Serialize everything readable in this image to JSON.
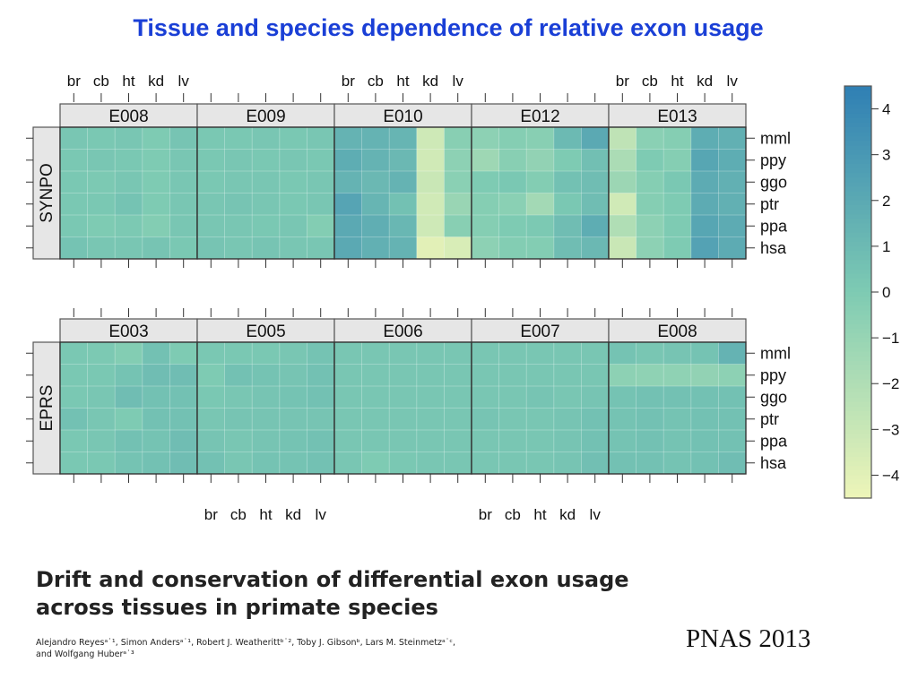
{
  "slide": {
    "title": "Tissue and species dependence of relative exon usage"
  },
  "paper": {
    "title_lines": [
      "Drift and conservation of differential exon usage",
      "across tissues in primate species"
    ],
    "authors_line1": "Alejandro Reyesᵃ˙¹, Simon Andersᵃ˙¹, Robert J. Weatherittᵇ˙², Toby J. Gibsonᵇ, Lars M. Steinmetzᵃ˙ᶜ,",
    "authors_line2": "and Wolfgang Huberᵃ˙³",
    "journal": "PNAS 2013"
  },
  "chart_data": {
    "type": "heatmap",
    "tissues": [
      "br",
      "cb",
      "ht",
      "kd",
      "lv"
    ],
    "species": [
      "mml",
      "ppy",
      "ggo",
      "ptr",
      "ppa",
      "hsa"
    ],
    "colorbar": {
      "ticks": [
        4,
        3,
        2,
        1,
        0,
        -1,
        -2,
        -3,
        -4
      ],
      "range": [
        -4.5,
        4.5
      ],
      "low_color": "#eef5b8",
      "mid_color": "#7ecbb3",
      "high_color": "#2f7fb4"
    },
    "panels": [
      {
        "gene": "SYNPO",
        "exons": [
          {
            "name": "E008",
            "values": [
              [
                0.3,
                0.2,
                0.3,
                0.0,
                0.4
              ],
              [
                0.2,
                0.3,
                0.2,
                0.0,
                0.3
              ],
              [
                0.2,
                0.1,
                0.3,
                0.0,
                0.3
              ],
              [
                0.2,
                0.2,
                0.5,
                0.0,
                0.3
              ],
              [
                0.2,
                0.0,
                0.1,
                -0.2,
                0.3
              ],
              [
                0.5,
                0.3,
                0.3,
                0.4,
                0.2
              ]
            ]
          },
          {
            "name": "E009",
            "values": [
              [
                0.2,
                0.2,
                0.3,
                0.2,
                0.3
              ],
              [
                0.2,
                0.3,
                0.2,
                0.3,
                0.2
              ],
              [
                0.2,
                0.3,
                0.3,
                0.2,
                0.3
              ],
              [
                0.3,
                0.4,
                0.3,
                0.2,
                0.3
              ],
              [
                0.3,
                0.3,
                0.2,
                0.3,
                -0.2
              ],
              [
                0.4,
                0.3,
                0.4,
                0.3,
                0.3
              ]
            ]
          },
          {
            "name": "E010",
            "values": [
              [
                1.4,
                1.4,
                1.3,
                -3.2,
                -0.4
              ],
              [
                1.8,
                1.4,
                1.1,
                -3.3,
                -0.6
              ],
              [
                1.4,
                1.1,
                1.4,
                -3.0,
                -0.5
              ],
              [
                2.3,
                1.3,
                0.6,
                -3.3,
                -1.1
              ],
              [
                2.0,
                1.7,
                1.2,
                -3.2,
                -0.4
              ],
              [
                2.0,
                1.6,
                1.4,
                -4.0,
                -3.6
              ]
            ]
          },
          {
            "name": "E012",
            "values": [
              [
                -0.6,
                -0.3,
                -0.4,
                1.0,
                2.0
              ],
              [
                -1.3,
                -0.4,
                -0.8,
                0.0,
                0.7
              ],
              [
                0.0,
                0.2,
                -0.2,
                0.6,
                0.8
              ],
              [
                -0.3,
                -0.5,
                -1.5,
                0.2,
                0.8
              ],
              [
                -0.3,
                0.0,
                0.1,
                0.8,
                1.8
              ],
              [
                -0.6,
                -0.2,
                -0.2,
                0.8,
                1.1
              ]
            ]
          },
          {
            "name": "E013",
            "values": [
              [
                -2.6,
                -0.5,
                -0.3,
                1.8,
                1.6
              ],
              [
                -1.8,
                0.0,
                -0.3,
                2.2,
                1.8
              ],
              [
                -1.2,
                -0.3,
                0.2,
                1.9,
                1.6
              ],
              [
                -3.3,
                -0.3,
                0.0,
                1.9,
                1.6
              ],
              [
                -2.0,
                -0.6,
                0.0,
                2.2,
                1.9
              ],
              [
                -3.0,
                -0.6,
                0.0,
                2.4,
                1.9
              ]
            ]
          }
        ]
      },
      {
        "gene": "EPRS",
        "exons": [
          {
            "name": "E003",
            "values": [
              [
                0.2,
                0.1,
                -0.2,
                0.6,
                0.0
              ],
              [
                0.2,
                0.2,
                0.5,
                0.8,
                0.8
              ],
              [
                0.2,
                0.3,
                0.8,
                0.6,
                0.6
              ],
              [
                0.6,
                0.3,
                0.0,
                0.6,
                0.6
              ],
              [
                0.2,
                0.3,
                0.6,
                0.5,
                0.8
              ],
              [
                0.2,
                0.2,
                0.5,
                0.6,
                0.8
              ]
            ]
          },
          {
            "name": "E005",
            "values": [
              [
                0.2,
                0.2,
                0.2,
                0.3,
                0.5
              ],
              [
                0.0,
                0.6,
                0.5,
                0.4,
                0.6
              ],
              [
                0.2,
                0.3,
                0.4,
                0.5,
                0.6
              ],
              [
                0.3,
                0.4,
                0.4,
                0.4,
                0.4
              ],
              [
                0.4,
                0.3,
                0.4,
                0.5,
                0.6
              ],
              [
                0.6,
                0.3,
                0.5,
                0.5,
                0.6
              ]
            ]
          },
          {
            "name": "E006",
            "values": [
              [
                0.3,
                0.3,
                0.3,
                0.3,
                0.3
              ],
              [
                0.3,
                0.3,
                0.3,
                0.3,
                0.3
              ],
              [
                0.3,
                0.3,
                0.3,
                0.3,
                0.3
              ],
              [
                0.3,
                0.3,
                0.3,
                0.3,
                0.3
              ],
              [
                0.3,
                0.3,
                0.3,
                0.3,
                0.3
              ],
              [
                0.3,
                0.0,
                0.2,
                0.3,
                0.3
              ]
            ]
          },
          {
            "name": "E007",
            "values": [
              [
                0.3,
                0.3,
                0.3,
                0.3,
                0.3
              ],
              [
                0.3,
                0.3,
                0.3,
                0.3,
                0.3
              ],
              [
                0.3,
                0.3,
                0.4,
                0.3,
                0.4
              ],
              [
                0.4,
                0.3,
                0.3,
                0.4,
                0.6
              ],
              [
                0.3,
                0.3,
                0.3,
                0.4,
                0.6
              ],
              [
                0.3,
                0.3,
                0.3,
                0.4,
                0.7
              ]
            ]
          },
          {
            "name": "E008",
            "values": [
              [
                0.5,
                0.3,
                0.4,
                0.5,
                1.4
              ],
              [
                -0.6,
                -0.7,
                -0.7,
                -0.8,
                -0.6
              ],
              [
                0.5,
                0.6,
                0.6,
                0.6,
                0.6
              ],
              [
                0.5,
                0.6,
                0.5,
                0.6,
                0.6
              ],
              [
                0.5,
                0.6,
                0.5,
                0.6,
                0.6
              ],
              [
                0.6,
                0.6,
                0.5,
                0.6,
                0.8
              ]
            ]
          }
        ]
      }
    ]
  }
}
